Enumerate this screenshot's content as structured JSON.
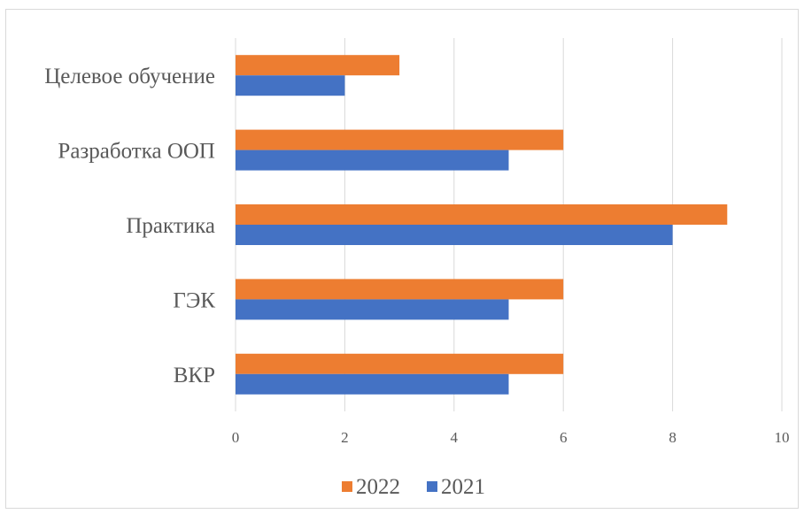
{
  "chart_data": {
    "type": "bar",
    "orientation": "horizontal",
    "categories": [
      "ВКР",
      "ГЭК",
      "Практика",
      "Разработка ООП",
      "Целевое обучение"
    ],
    "series": [
      {
        "name": "2022",
        "values": [
          6,
          6,
          9,
          6,
          3
        ],
        "color": "#ED7D31"
      },
      {
        "name": "2021",
        "values": [
          5,
          5,
          8,
          5,
          2
        ],
        "color": "#4472C4"
      }
    ],
    "xlim": [
      0,
      10
    ],
    "xticks": [
      "0",
      "2",
      "4",
      "6",
      "8",
      "10"
    ],
    "grid": true,
    "legend_position": "bottom",
    "title": "",
    "xlabel": "",
    "ylabel": ""
  }
}
